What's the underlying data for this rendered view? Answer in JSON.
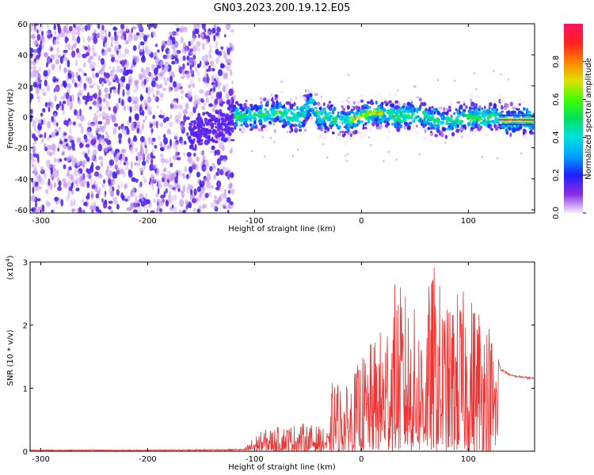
{
  "title": "GN03.2023.200.19.12.E05",
  "colors": {
    "snr_line": "#ee3333"
  },
  "chart_data": [
    {
      "type": "heatmap",
      "xlabel": "Height of straight line (km)",
      "ylabel": "Frequency (Hz)",
      "xlim": [
        -310,
        162
      ],
      "ylim": [
        -62,
        60
      ],
      "x_ticks": [
        -300,
        -200,
        -100,
        0,
        100
      ],
      "y_ticks": [
        60,
        40,
        20,
        0,
        -20,
        -40,
        -60
      ],
      "colorbar": {
        "label": "Normalized spectral amplitude",
        "range": [
          0,
          1
        ],
        "ticks": [
          "0.0",
          "0.2",
          "0.4",
          "0.6",
          "0.8"
        ],
        "colormap": "rainbow (purple to red)"
      },
      "features": {
        "broadband_noise_x_range": [
          -310,
          -120
        ],
        "signal_band_x_range": [
          -160,
          162
        ],
        "signal_center_frequency": 0,
        "signal_halfwidth_hz": 6,
        "bump_at_x": -48,
        "bump_peak_frequency": 18
      }
    },
    {
      "type": "line",
      "xlabel": "Height of straight line (km)",
      "ylabel": "SNR (10 * v/v)",
      "y_multiplier": "(x10",
      "y_multiplier_exp": "4",
      "y_multiplier_close": ")",
      "xlim": [
        -310,
        162
      ],
      "ylim": [
        0,
        3
      ],
      "x_ticks": [
        -300,
        -200,
        -100,
        0,
        100
      ],
      "y_ticks": [
        0,
        1,
        2,
        3
      ],
      "series": [
        {
          "envelope": [
            [
              -310,
              0.02
            ],
            [
              -200,
              0.02
            ],
            [
              -110,
              0.03
            ],
            [
              -100,
              0.25
            ],
            [
              -90,
              0.35
            ],
            [
              -75,
              0.4
            ],
            [
              -55,
              0.45
            ],
            [
              -40,
              0.4
            ],
            [
              -30,
              0.3
            ],
            [
              -27,
              1.2
            ],
            [
              -15,
              1.0
            ],
            [
              0,
              1.5
            ],
            [
              20,
              2.0
            ],
            [
              30,
              2.7
            ],
            [
              40,
              2.6
            ],
            [
              55,
              2.1
            ],
            [
              68,
              3.0
            ],
            [
              80,
              2.3
            ],
            [
              90,
              2.6
            ],
            [
              100,
              2.5
            ],
            [
              110,
              2.5
            ],
            [
              120,
              2.1
            ],
            [
              130,
              1.3
            ],
            [
              140,
              1.2
            ],
            [
              162,
              1.15
            ]
          ]
        }
      ]
    }
  ]
}
